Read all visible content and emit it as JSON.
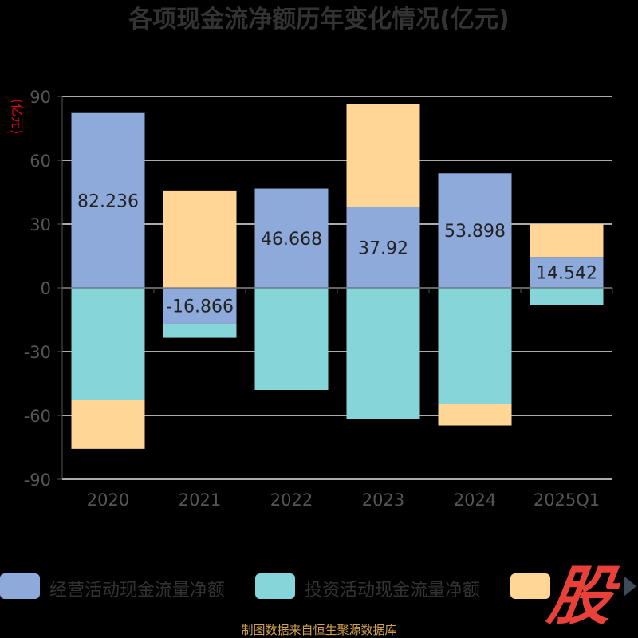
{
  "title": "各项现金流净额历年变化情况(亿元)",
  "unit_label": "(亿元)",
  "colors": {
    "operating": "#8eaadb",
    "investing": "#86d5d8",
    "financing": "#ffd696",
    "grid": "#e6e6e6",
    "axis_text": "#555555",
    "unit_text": "#e60012",
    "title_text": "#333333",
    "footer_text": "#d4a24a",
    "logo": "#e8413a"
  },
  "legend": [
    {
      "label": "经营活动现金流量净额",
      "color": "#8eaadb"
    },
    {
      "label": "投资活动现金流量净额",
      "color": "#86d5d8"
    },
    {
      "label": "",
      "color": "#ffd696"
    }
  ],
  "logo_text": "股",
  "footer": "制图数据来自恒生聚源数据库",
  "chart_data": {
    "type": "bar",
    "stacked": true,
    "title": "各项现金流净额历年变化情况(亿元)",
    "ylabel": "(亿元)",
    "categories": [
      "2020",
      "2021",
      "2022",
      "2023",
      "2024",
      "2025Q1"
    ],
    "ylim": [
      -90,
      90
    ],
    "yticks": [
      90,
      60,
      30,
      0,
      -30,
      -60,
      -90
    ],
    "grid": true,
    "legend_position": "bottom",
    "series": [
      {
        "name": "经营活动现金流量净额",
        "color": "#8eaadb",
        "values": [
          82.236,
          -16.866,
          46.668,
          37.92,
          53.898,
          14.542
        ],
        "labels": [
          "82.236",
          "-16.866",
          "46.668",
          "37.92",
          "53.898",
          "14.542"
        ]
      },
      {
        "name": "投资活动现金流量净额",
        "color": "#86d5d8",
        "values": [
          -52.5,
          -6.6,
          -48.0,
          -61.5,
          -54.7,
          -8.0
        ]
      },
      {
        "name": "",
        "color": "#ffd696",
        "values": [
          -23.2,
          45.8,
          0,
          48.5,
          -10.0,
          15.5
        ]
      }
    ]
  }
}
